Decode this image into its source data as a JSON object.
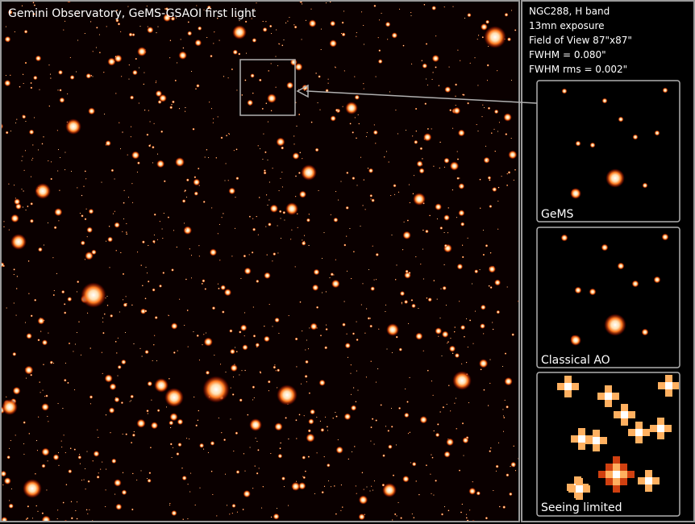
{
  "title": "Gemini Observatory, GeMS-GSAOI first light",
  "info": [
    "NGC288, H band",
    "13mn exposure",
    "Field of View 87\"x87\"",
    "FWHM = 0.080\"",
    "FWHM rms = 0.002\""
  ],
  "panels": [
    "GeMS",
    "Classical AO",
    "Seeing limited"
  ]
}
